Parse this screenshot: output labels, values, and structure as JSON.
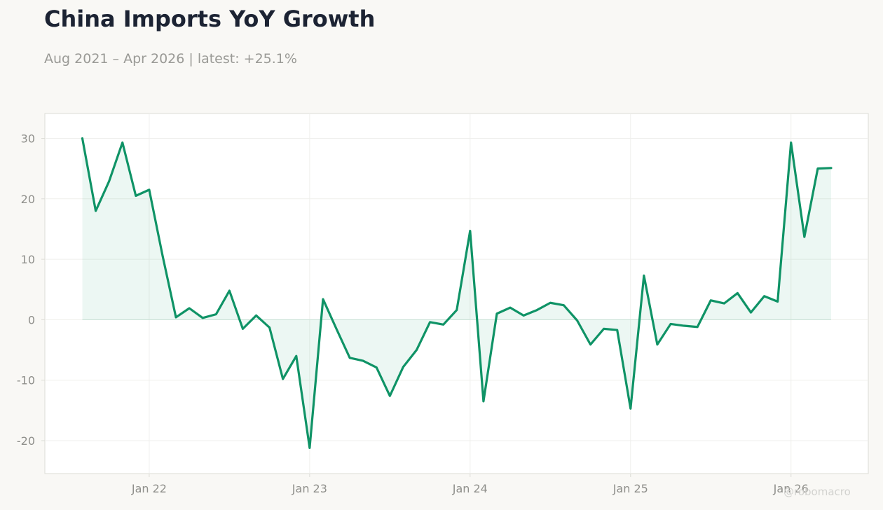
{
  "title": "China Imports YoY Growth",
  "subtitle": "Aug 2021 – Apr 2026 | latest: +25.1%",
  "watermark": "@robomacro",
  "colors": {
    "line": "#0f9366",
    "fill": "#0f9366",
    "background": "#f9f8f5",
    "plot_background": "#ffffff",
    "grid": "#efefec",
    "axis_border": "#dcdcd6",
    "zero_line": "#c6e1d5"
  },
  "chart_data": {
    "type": "area",
    "x_axis": "date",
    "y_ticks": [
      -20,
      -10,
      0,
      10,
      20,
      30
    ],
    "x_ticks": [
      "Jan 22",
      "Jan 23",
      "Jan 24",
      "Jan 25",
      "Jan 26"
    ],
    "grid": true,
    "legend": "none",
    "series": [
      {
        "x": [
          "2021-08",
          "2021-09",
          "2021-10",
          "2021-11",
          "2021-12",
          "2022-01",
          "2022-02",
          "2022-03",
          "2022-04",
          "2022-05",
          "2022-06",
          "2022-07",
          "2022-08",
          "2022-09",
          "2022-10",
          "2022-11",
          "2022-12",
          "2023-01",
          "2023-02",
          "2023-03",
          "2023-04",
          "2023-05",
          "2023-06",
          "2023-07",
          "2023-08",
          "2023-09",
          "2023-10",
          "2023-11",
          "2023-12",
          "2024-01",
          "2024-02",
          "2024-03",
          "2024-04",
          "2024-05",
          "2024-06",
          "2024-07",
          "2024-08",
          "2024-09",
          "2024-10",
          "2024-11",
          "2024-12",
          "2025-01",
          "2025-02",
          "2025-03",
          "2025-04",
          "2025-05",
          "2025-06",
          "2025-07",
          "2025-08",
          "2025-09",
          "2025-10",
          "2025-11",
          "2025-12",
          "2026-01",
          "2026-02",
          "2026-03",
          "2026-04"
        ],
        "values": [
          30.0,
          18.0,
          22.9,
          29.3,
          20.5,
          21.5,
          10.6,
          0.4,
          1.9,
          0.3,
          0.9,
          4.8,
          -1.5,
          0.7,
          -1.3,
          -9.8,
          -6.0,
          -21.2,
          3.4,
          -1.5,
          -6.3,
          -6.8,
          -7.9,
          -12.6,
          -7.8,
          -5.0,
          -0.4,
          -0.8,
          1.6,
          14.7,
          -13.5,
          1.0,
          2.0,
          0.7,
          1.6,
          2.8,
          2.4,
          -0.1,
          -4.1,
          -1.5,
          -1.7,
          -14.7,
          7.3,
          -4.1,
          -0.7,
          -1.0,
          -1.2,
          3.2,
          2.7,
          4.4,
          1.2,
          3.9,
          3.0,
          29.3,
          13.7,
          25.0,
          25.1
        ]
      }
    ]
  }
}
